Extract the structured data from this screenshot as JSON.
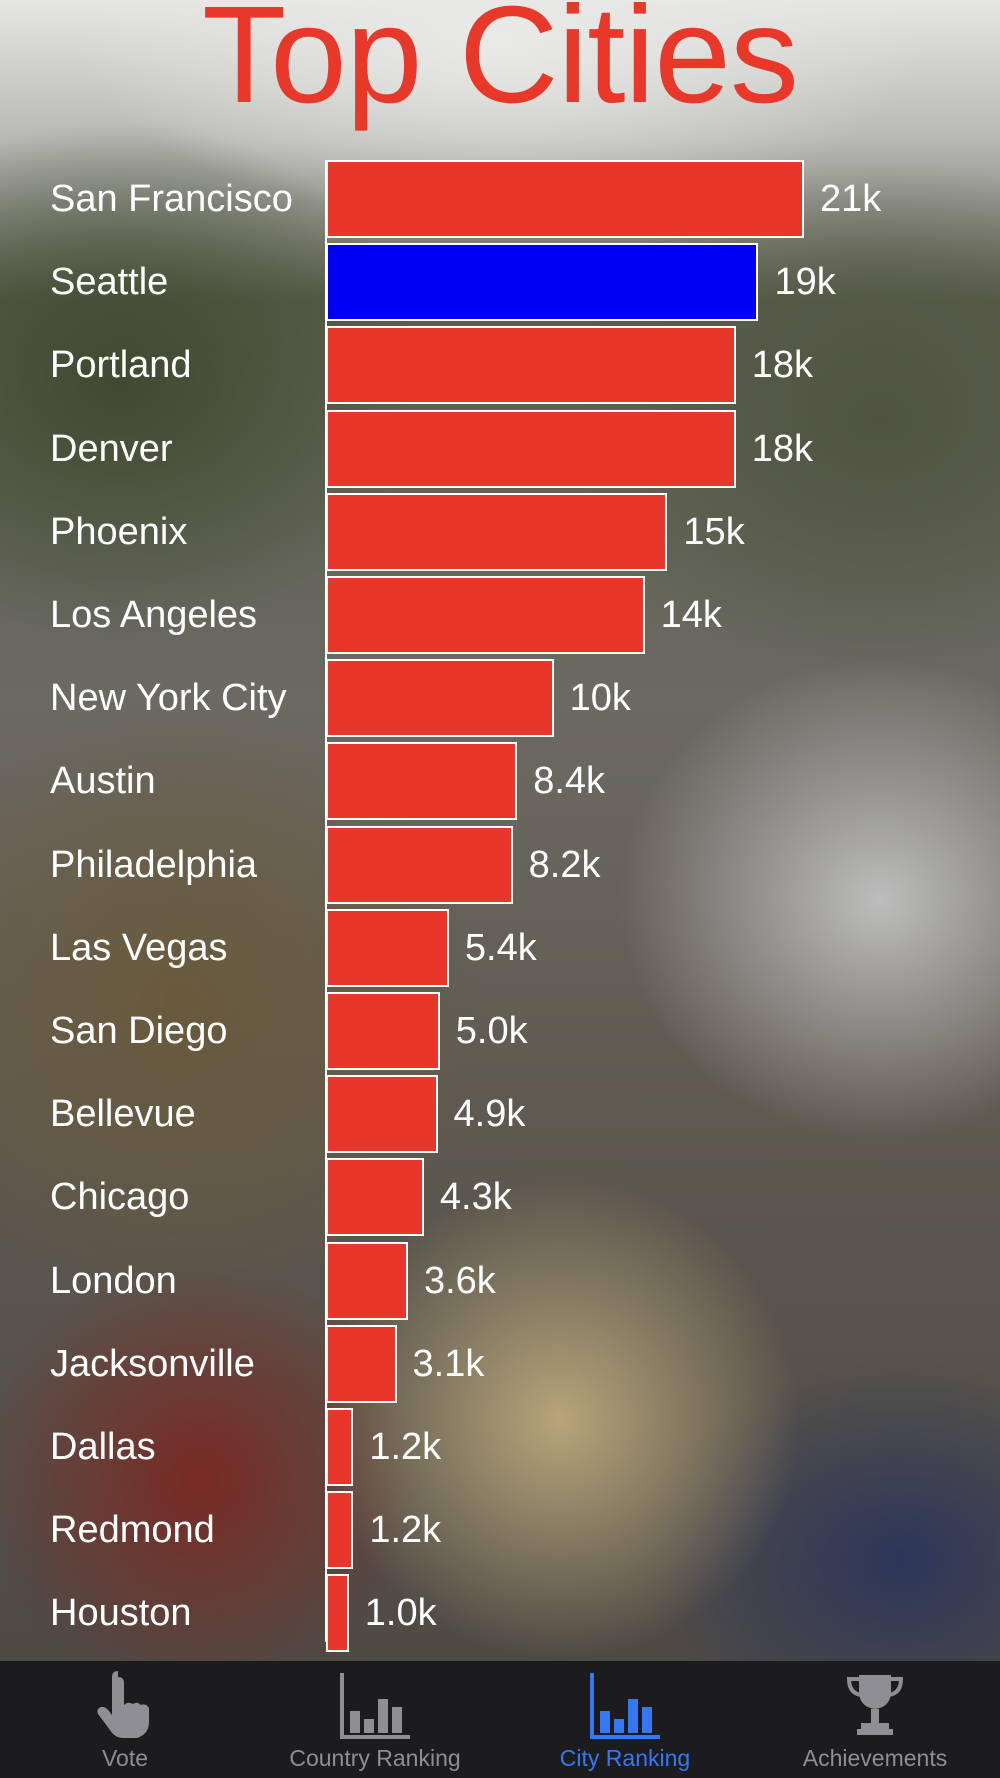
{
  "title": "Top Cities",
  "colors": {
    "bar": "#e8362a",
    "highlight": "#0000f5",
    "title": "#e8382a",
    "tab_active": "#3478f6",
    "tab_inactive": "#8e8e93"
  },
  "chart_data": {
    "type": "bar",
    "orientation": "horizontal",
    "title": "Top Cities",
    "highlighted_category": "Seattle",
    "categories": [
      "San Francisco",
      "Seattle",
      "Portland",
      "Denver",
      "Phoenix",
      "Los Angeles",
      "New York City",
      "Austin",
      "Philadelphia",
      "Las Vegas",
      "San Diego",
      "Bellevue",
      "Chicago",
      "London",
      "Jacksonville",
      "Dallas",
      "Redmond",
      "Houston"
    ],
    "values": [
      21000,
      19000,
      18000,
      18000,
      15000,
      14000,
      10000,
      8400,
      8200,
      5400,
      5000,
      4900,
      4300,
      3600,
      3100,
      1200,
      1200,
      1000
    ],
    "value_labels": [
      "21k",
      "19k",
      "18k",
      "18k",
      "15k",
      "14k",
      "10k",
      "8.4k",
      "8.2k",
      "5.4k",
      "5.0k",
      "4.9k",
      "4.3k",
      "3.6k",
      "3.1k",
      "1.2k",
      "1.2k",
      "1.0k"
    ],
    "xlim": [
      0,
      21000
    ],
    "grid": false
  },
  "tabbar": {
    "items": [
      {
        "label": "Vote",
        "icon": "pointing-hand-icon",
        "active": false
      },
      {
        "label": "Country Ranking",
        "icon": "bar-chart-icon",
        "active": false
      },
      {
        "label": "City Ranking",
        "icon": "bar-chart-icon",
        "active": true
      },
      {
        "label": "Achievements",
        "icon": "trophy-icon",
        "active": false
      }
    ]
  }
}
